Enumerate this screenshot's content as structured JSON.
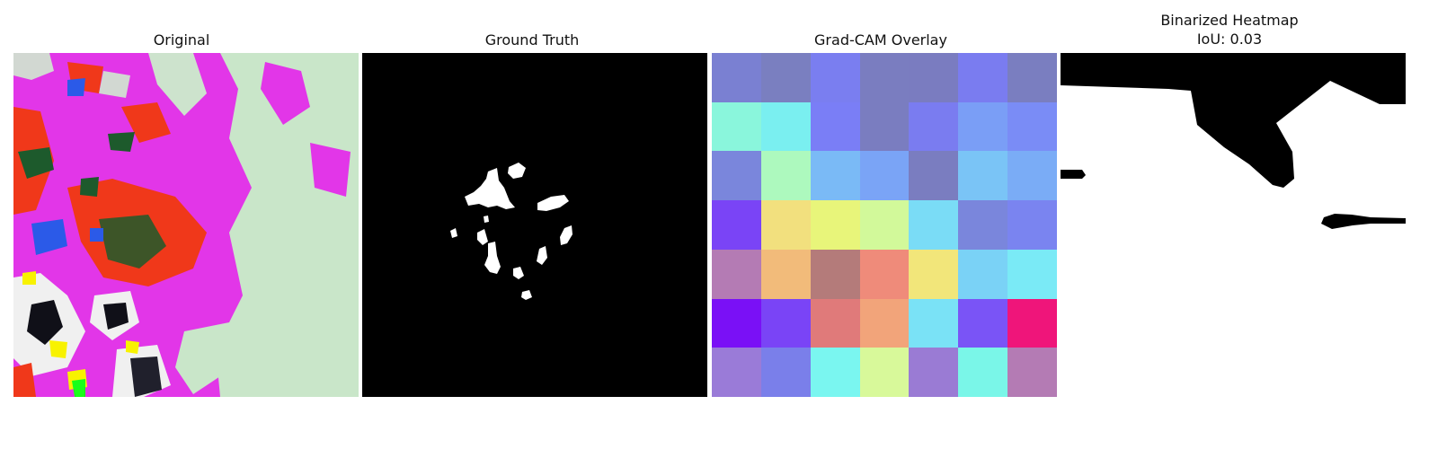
{
  "panels": {
    "original": {
      "title": "Original"
    },
    "ground_truth": {
      "title": "Ground Truth"
    },
    "gradcam": {
      "title": "Grad-CAM Overlay",
      "grid": [
        [
          "#7a80d2",
          "#7a7fc0",
          "#7a7ef0",
          "#7a7dc0",
          "#7a7cc0",
          "#7a7cf0",
          "#7a7ec0"
        ],
        [
          "#8af6dc",
          "#7aeff0",
          "#7a7ef6",
          "#7a7dc0",
          "#7a7cf0",
          "#7a9ef6",
          "#7a8cf6"
        ],
        [
          "#7a86dc",
          "#adf9be",
          "#7abaf6",
          "#7aa4f6",
          "#7a7dc0",
          "#7ac4f6",
          "#7aacf6"
        ],
        [
          "#7a44f6",
          "#f2e07e",
          "#e8f57a",
          "#d2f99a",
          "#7adcf6",
          "#7a86dc",
          "#7a84f0"
        ],
        [
          "#b47bb4",
          "#f2bb7a",
          "#b47b7a",
          "#ef8b7a",
          "#f2e67a",
          "#7ad2f6",
          "#7aeaf6"
        ],
        [
          "#7a10f6",
          "#7a44f6",
          "#e07a7a",
          "#f2a47a",
          "#7ae2f6",
          "#7a54f6",
          "#ef157a"
        ],
        [
          "#9a7bd8",
          "#7a7fea",
          "#7af6f0",
          "#d8f99a",
          "#9a7bd4",
          "#7af6e8",
          "#b47bb4"
        ]
      ]
    },
    "binarized": {
      "title_line1": "Binarized Heatmap",
      "title_line2": "IoU: 0.03"
    }
  },
  "colors": {
    "magenta": "#e236e8",
    "red": "#f0381a",
    "pale_green": "#c9e6c9",
    "dark_green": "#1d5a2c",
    "black": "#000000",
    "white": "#ffffff"
  }
}
